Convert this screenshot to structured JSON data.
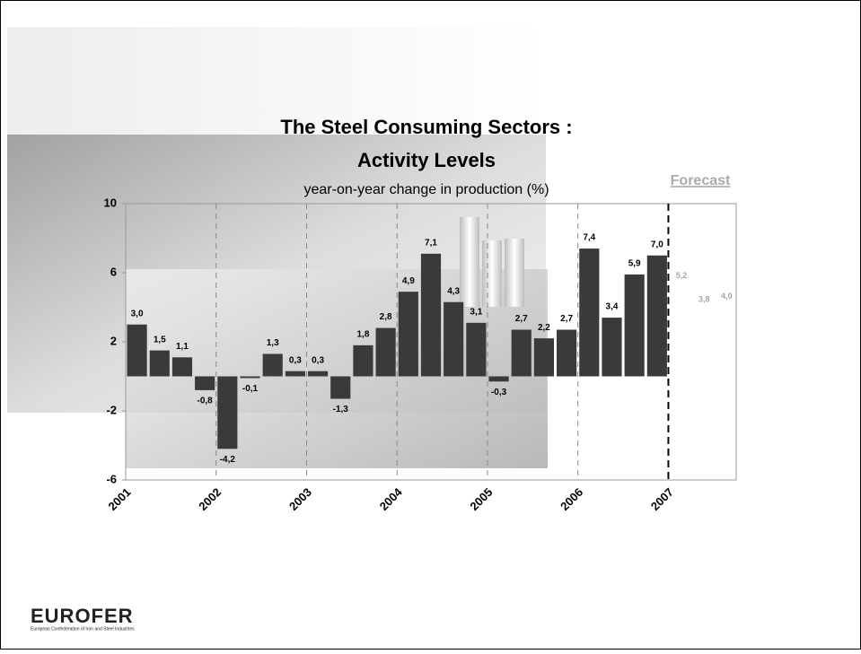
{
  "chart_data": {
    "type": "bar",
    "title": "The Steel Consuming Sectors :",
    "title_line2": "Activity Levels",
    "subtitle": "year-on-year change in production (%)",
    "annotation": "Forecast",
    "categories": [
      "2001",
      null,
      null,
      null,
      "2002",
      null,
      null,
      null,
      "2003",
      null,
      null,
      null,
      "2004",
      null,
      null,
      null,
      "2005",
      null,
      null,
      null,
      "2006",
      null,
      null,
      null,
      "2007",
      null,
      null
    ],
    "series": [
      {
        "color": "#3a3a3a",
        "values": [
          3.0,
          1.5,
          1.1,
          -0.8,
          -4.2,
          -0.1,
          1.3,
          0.3,
          0.3,
          -1.3,
          1.8,
          2.8,
          4.9,
          7.1,
          4.3,
          3.1,
          -0.3,
          2.7,
          2.2,
          2.7,
          7.4,
          3.4,
          5.9,
          7.0,
          null,
          null,
          null
        ],
        "value_labels": [
          "3,0",
          "1,5",
          "1,1",
          "-0,8",
          "-4,2",
          "-0,1",
          "1,3",
          "0,3",
          "0,3",
          "-1,3",
          "1,8",
          "2,8",
          "4,9",
          "7,1",
          "4,3",
          "3,1",
          "-0,3",
          "2,7",
          "2,2",
          "2,7",
          "7,4",
          "3,4",
          "5,9",
          "7,0",
          null,
          null,
          null
        ]
      },
      {
        "color": "#a6a6a6",
        "values": [
          null,
          null,
          null,
          null,
          null,
          null,
          null,
          null,
          null,
          null,
          null,
          null,
          null,
          null,
          null,
          null,
          null,
          null,
          null,
          null,
          null,
          null,
          null,
          null,
          5.2,
          3.8,
          4.0
        ],
        "value_labels": [
          null,
          null,
          null,
          null,
          null,
          null,
          null,
          null,
          null,
          null,
          null,
          null,
          null,
          null,
          null,
          null,
          null,
          null,
          null,
          null,
          null,
          null,
          null,
          null,
          "5,2",
          "3,8",
          "4,0"
        ]
      }
    ],
    "ylim": [
      -6,
      10
    ],
    "yticks": [
      -6,
      -2,
      2,
      6,
      10
    ]
  },
  "footer": {
    "logo": "EUROFER",
    "logo_subtitle": "European Confederation of Iron and Steel Industries"
  }
}
